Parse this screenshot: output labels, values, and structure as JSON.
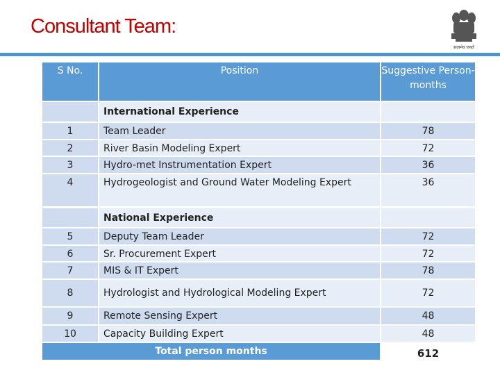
{
  "header": {
    "title": "Consultant Team:",
    "emblem_caption": "सत्यमेव जयते"
  },
  "table": {
    "columns": [
      "S No.",
      "Position",
      "Suggestive Person-months"
    ],
    "sections": [
      {
        "heading": "International Experience",
        "rows": [
          [
            "1",
            "Team Leader",
            "78"
          ],
          [
            "2",
            "River Basin  Modeling Expert",
            "72"
          ],
          [
            "3",
            "Hydro-met  Instrumentation Expert",
            "36"
          ],
          [
            "4",
            "Hydrogeologist and Ground Water Modeling Expert",
            "36"
          ]
        ]
      },
      {
        "heading": "National Experience",
        "rows": [
          [
            "5",
            "Deputy Team Leader",
            "72"
          ],
          [
            "6",
            "Sr. Procurement Expert",
            "72"
          ],
          [
            "7",
            "MIS & IT Expert",
            "78"
          ],
          [
            "8",
            "Hydrologist and Hydrological Modeling Expert",
            "72"
          ],
          [
            "9",
            "Remote Sensing  Expert",
            "48"
          ],
          [
            "10",
            "Capacity Building Expert",
            "48"
          ]
        ]
      }
    ],
    "total": {
      "label": "Total person months",
      "value": "612"
    }
  }
}
